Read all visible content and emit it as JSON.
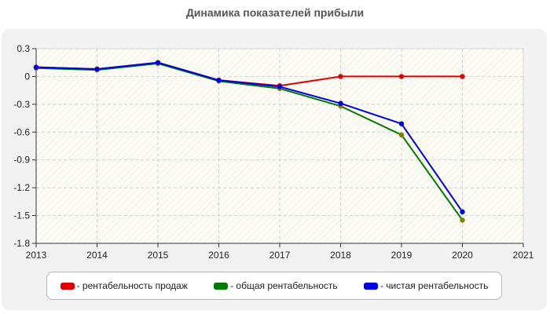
{
  "chart_data": {
    "type": "line",
    "title": "Динамика показателей прибыли",
    "xlabel": "",
    "ylabel": "",
    "x_ticks": [
      "2013",
      "2014",
      "2015",
      "2016",
      "2017",
      "2018",
      "2019",
      "2020",
      "2021"
    ],
    "y_ticks": [
      "0.3",
      "0",
      "-0.3",
      "-0.6",
      "-0.9",
      "-1.2",
      "-1.5",
      "-1.8"
    ],
    "xlim": [
      2013,
      2021
    ],
    "ylim": [
      -1.8,
      0.3
    ],
    "grid": true,
    "legend_position": "bottom",
    "series": [
      {
        "name": "- рентабельность продаж",
        "color": "#e00000",
        "x": [
          2013,
          2014,
          2015,
          2016,
          2017,
          2018,
          2019,
          2020
        ],
        "y": [
          0.1,
          0.08,
          0.15,
          -0.04,
          -0.1,
          0.0,
          0.0,
          0.0
        ]
      },
      {
        "name": "- общая рентабельность",
        "color": "#007a00",
        "marker_color": "#808000",
        "x": [
          2013,
          2014,
          2015,
          2016,
          2017,
          2018,
          2019,
          2020
        ],
        "y": [
          0.09,
          0.07,
          0.14,
          -0.05,
          -0.13,
          -0.32,
          -0.63,
          -1.55
        ]
      },
      {
        "name": "- чистая рентабельность",
        "color": "#0000e0",
        "x": [
          2013,
          2014,
          2015,
          2016,
          2017,
          2018,
          2019,
          2020
        ],
        "y": [
          0.1,
          0.08,
          0.15,
          -0.04,
          -0.11,
          -0.29,
          -0.51,
          -1.46
        ]
      }
    ]
  }
}
